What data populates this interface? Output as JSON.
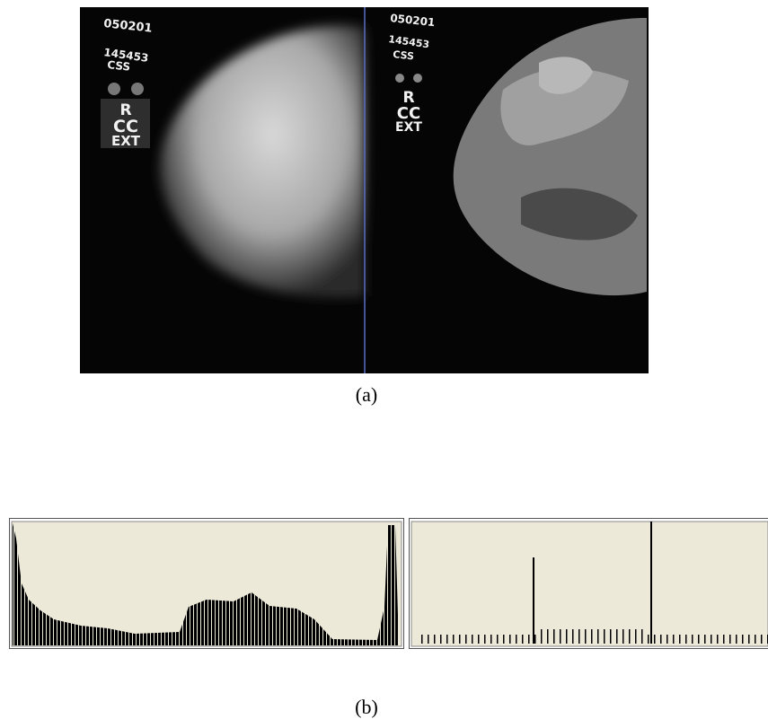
{
  "figure": {
    "panel_a": {
      "left": {
        "lines": [
          "050201",
          "145453",
          "CSS",
          "R",
          "CC",
          "EXT"
        ]
      },
      "right": {
        "lines": [
          "050201",
          "145453",
          "CSS",
          "R",
          "CC",
          "EXT"
        ]
      },
      "caption": "(a)"
    },
    "panel_b": {
      "caption": "(b)"
    }
  }
}
